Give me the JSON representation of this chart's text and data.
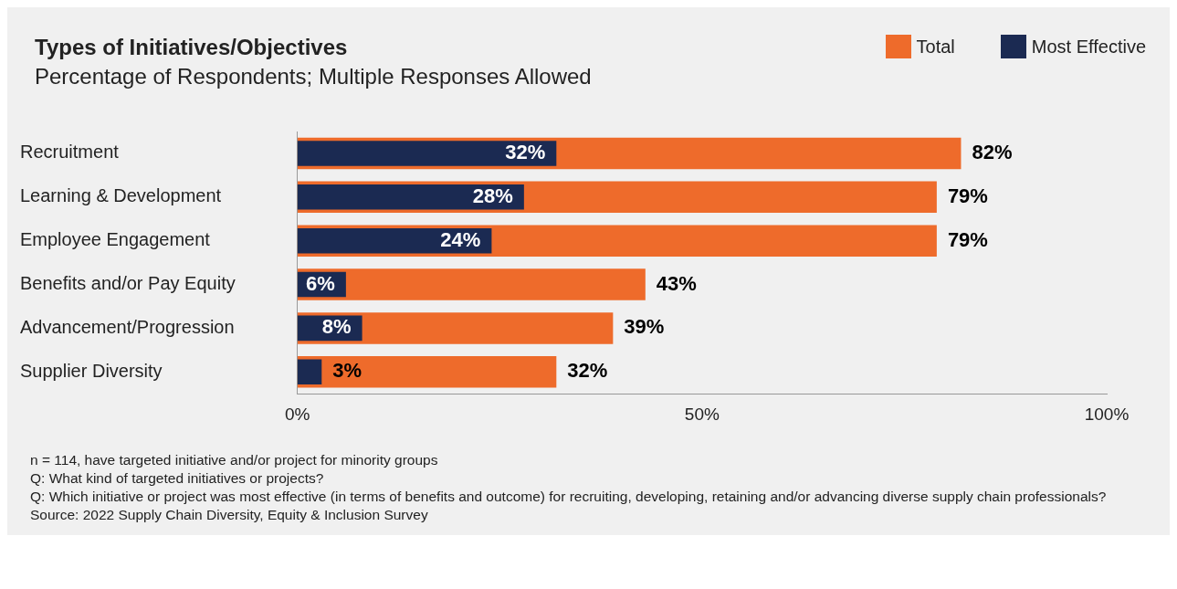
{
  "chart_data": {
    "type": "bar",
    "orientation": "horizontal",
    "title": "Types of Initiatives/Objectives",
    "subtitle": "Percentage of Respondents; Multiple Responses Allowed",
    "categories": [
      "Recruitment",
      "Learning & Development",
      "Employee Engagement",
      "Benefits and/or Pay Equity",
      "Advancement/Progression",
      "Supplier Diversity"
    ],
    "series": [
      {
        "name": "Total",
        "color": "#ee6b2b",
        "values": [
          82,
          79,
          79,
          43,
          39,
          32
        ],
        "value_labels": [
          "82%",
          "79%",
          "79%",
          "43%",
          "39%",
          "32%"
        ]
      },
      {
        "name": "Most Effective",
        "color": "#1b2a52",
        "values": [
          32,
          28,
          24,
          6,
          8,
          3
        ],
        "value_labels": [
          "32%",
          "28%",
          "24%",
          "6%",
          "8%",
          "3%"
        ]
      }
    ],
    "xlim": [
      0,
      100
    ],
    "xticks": [
      {
        "value": 0,
        "label": "0%"
      },
      {
        "value": 50,
        "label": "50%"
      },
      {
        "value": 100,
        "label": "100%"
      }
    ],
    "grid": false,
    "legend": "top right",
    "annotations": [
      "n = 114, have targeted initiative and/or project for minority groups",
      "Q: What kind of targeted initiatives or projects?",
      "Q: Which initiative or project was most effective (in terms of benefits and outcome) for recruiting, developing, retaining and/or advancing diverse supply chain professionals?",
      "Source: 2022 Supply Chain Diversity, Equity & Inclusion Survey"
    ]
  }
}
